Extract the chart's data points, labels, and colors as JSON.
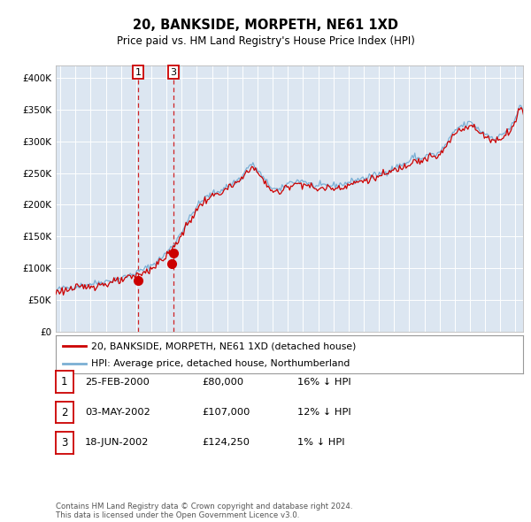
{
  "title": "20, BANKSIDE, MORPETH, NE61 1XD",
  "subtitle": "Price paid vs. HM Land Registry's House Price Index (HPI)",
  "background_color": "#dce6f1",
  "fig_bg_color": "#ffffff",
  "line_color_hpi": "#7bafd4",
  "line_color_price": "#cc0000",
  "sale_marker_color": "#cc0000",
  "vline_color": "#cc0000",
  "legend_entries": [
    "20, BANKSIDE, MORPETH, NE61 1XD (detached house)",
    "HPI: Average price, detached house, Northumberland"
  ],
  "sales": [
    {
      "label": "1",
      "date": "25-FEB-2000",
      "price": 80000,
      "hpi_pct": "16% ↓ HPI",
      "date_num": 2000.12
    },
    {
      "label": "2",
      "date": "03-MAY-2002",
      "price": 107000,
      "hpi_pct": "12% ↓ HPI",
      "date_num": 2002.33
    },
    {
      "label": "3",
      "date": "18-JUN-2002",
      "price": 124250,
      "hpi_pct": "1% ↓ HPI",
      "date_num": 2002.46
    }
  ],
  "table_rows": [
    [
      "1",
      "25-FEB-2000",
      "£80,000",
      "16% ↓ HPI"
    ],
    [
      "2",
      "03-MAY-2002",
      "£107,000",
      "12% ↓ HPI"
    ],
    [
      "3",
      "18-JUN-2002",
      "£124,250",
      "1% ↓ HPI"
    ]
  ],
  "footer": "Contains HM Land Registry data © Crown copyright and database right 2024.\nThis data is licensed under the Open Government Licence v3.0.",
  "ylim": [
    0,
    420000
  ],
  "xlim": [
    1994.7,
    2025.5
  ],
  "yticks": [
    0,
    50000,
    100000,
    150000,
    200000,
    250000,
    300000,
    350000,
    400000
  ],
  "ytick_labels": [
    "£0",
    "£50K",
    "£100K",
    "£150K",
    "£200K",
    "£250K",
    "£300K",
    "£350K",
    "£400K"
  ],
  "xticks": [
    1995,
    1996,
    1997,
    1998,
    1999,
    2000,
    2001,
    2002,
    2003,
    2004,
    2005,
    2006,
    2007,
    2008,
    2009,
    2010,
    2011,
    2012,
    2013,
    2014,
    2015,
    2016,
    2017,
    2018,
    2019,
    2020,
    2021,
    2022,
    2023,
    2024,
    2025
  ]
}
